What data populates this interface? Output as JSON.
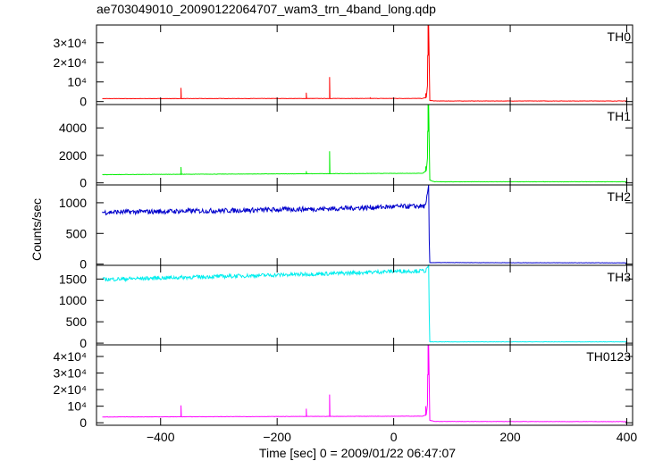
{
  "chart_data": {
    "type": "line",
    "title": "ae703049010_20090122064707_wam3_trn_4band_long.qdp",
    "xlabel": "Time [sec] 0 = 2009/01/22 06:47:07",
    "ylabel": "Counts/sec",
    "xlim": [
      -510,
      410
    ],
    "xticks": [
      -400,
      -200,
      0,
      200,
      400
    ],
    "panels": [
      {
        "name": "TH0",
        "color": "#ff0000",
        "ylim": [
          -1500,
          39000
        ],
        "yticks": [
          0,
          10000,
          20000,
          30000
        ],
        "ytick_labels": [
          "0",
          "10⁴",
          "2×10⁴",
          "3×10⁴"
        ],
        "baseline": [
          [
            -500,
            1500
          ],
          [
            50,
            1600
          ],
          [
            56,
            2200
          ],
          [
            58,
            8000
          ],
          [
            60,
            39000
          ],
          [
            62,
            600
          ],
          [
            70,
            300
          ],
          [
            400,
            300
          ]
        ],
        "spikes": [
          [
            -365,
            7000
          ],
          [
            -150,
            4500
          ],
          [
            -110,
            12500
          ],
          [
            -40,
            1800
          ],
          [
            55,
            4200
          ],
          [
            59,
            39000
          ]
        ]
      },
      {
        "name": "TH1",
        "color": "#00ee00",
        "ylim": [
          -150,
          5700
        ],
        "yticks": [
          0,
          2000,
          4000
        ],
        "ytick_labels": [
          "0",
          "2000",
          "4000"
        ],
        "baseline": [
          [
            -500,
            600
          ],
          [
            50,
            700
          ],
          [
            56,
            900
          ],
          [
            58,
            1800
          ],
          [
            60,
            5700
          ],
          [
            62,
            200
          ],
          [
            70,
            80
          ],
          [
            400,
            80
          ]
        ],
        "spikes": [
          [
            -365,
            1150
          ],
          [
            -150,
            850
          ],
          [
            -110,
            2300
          ],
          [
            55,
            1200
          ],
          [
            59,
            5700
          ]
        ]
      },
      {
        "name": "TH2",
        "color": "#0000cc",
        "ylim": [
          -20,
          1290
        ],
        "yticks": [
          0,
          500,
          1000
        ],
        "ytick_labels": [
          "0",
          "500",
          "1000"
        ],
        "baseline": [
          [
            -500,
            845
          ],
          [
            -300,
            870
          ],
          [
            -100,
            905
          ],
          [
            0,
            935
          ],
          [
            55,
            945
          ],
          [
            60,
            1290
          ],
          [
            61,
            400
          ],
          [
            62,
            25
          ],
          [
            400,
            20
          ]
        ],
        "noise": 40,
        "spikes": []
      },
      {
        "name": "TH3",
        "color": "#00eeee",
        "ylim": [
          -40,
          1820
        ],
        "yticks": [
          0,
          500,
          1000,
          1500
        ],
        "ytick_labels": [
          "0",
          "500",
          "1000",
          "1500"
        ],
        "baseline": [
          [
            -500,
            1490
          ],
          [
            -300,
            1560
          ],
          [
            -100,
            1630
          ],
          [
            0,
            1680
          ],
          [
            55,
            1690
          ],
          [
            60,
            1820
          ],
          [
            61,
            700
          ],
          [
            62,
            30
          ],
          [
            400,
            30
          ]
        ],
        "noise": 45,
        "spikes": []
      },
      {
        "name": "TH0123",
        "color": "#ff00ff",
        "ylim": [
          -1500,
          47000
        ],
        "yticks": [
          0,
          10000,
          20000,
          30000,
          40000
        ],
        "ytick_labels": [
          "0",
          "10⁴",
          "2×10⁴",
          "3×10⁴",
          "4×10⁴"
        ],
        "baseline": [
          [
            -500,
            3500
          ],
          [
            50,
            4000
          ],
          [
            56,
            5000
          ],
          [
            58,
            11000
          ],
          [
            60,
            47000
          ],
          [
            62,
            1500
          ],
          [
            70,
            800
          ],
          [
            400,
            700
          ]
        ],
        "spikes": [
          [
            -365,
            10500
          ],
          [
            -150,
            8500
          ],
          [
            -110,
            17000
          ],
          [
            55,
            10000
          ],
          [
            59,
            47000
          ]
        ]
      }
    ]
  }
}
